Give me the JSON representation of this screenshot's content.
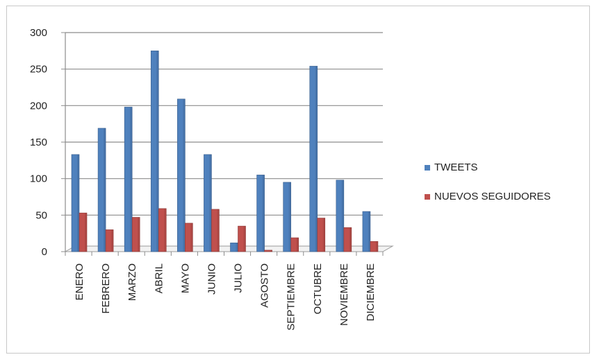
{
  "chart_data": {
    "type": "bar",
    "categories": [
      "ENERO",
      "FEBRERO",
      "MARZO",
      "ABRIL",
      "MAYO",
      "JUNIO",
      "JULIO",
      "AGOSTO",
      "SEPTIEMBRE",
      "OCTUBRE",
      "NOVIEMBRE",
      "DICIEMBRE"
    ],
    "series": [
      {
        "name": "TWEETS",
        "color": "#4f81bd",
        "values": [
          133,
          169,
          198,
          275,
          209,
          133,
          12,
          105,
          95,
          254,
          98,
          55
        ]
      },
      {
        "name": "NUEVOS SEGUIDORES",
        "color": "#c0504d",
        "values": [
          53,
          30,
          47,
          59,
          39,
          58,
          35,
          2,
          19,
          46,
          33,
          14
        ]
      }
    ],
    "yticks": [
      0,
      50,
      100,
      150,
      200,
      250,
      300
    ],
    "ylim": [
      0,
      300
    ],
    "grid": true,
    "legend_position": "right",
    "title": "",
    "xlabel": "",
    "ylabel": ""
  }
}
